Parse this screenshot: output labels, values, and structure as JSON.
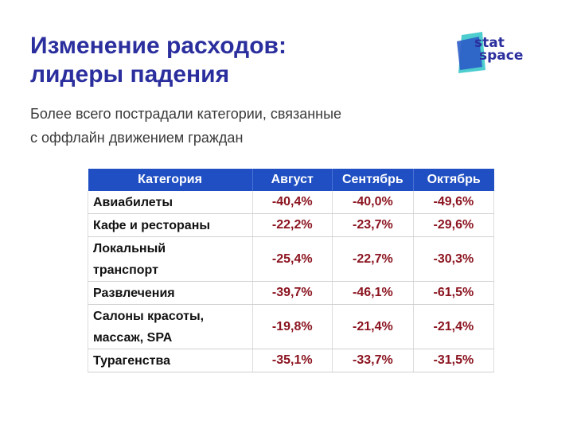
{
  "header": {
    "title_line1": "Изменение расходов:",
    "title_line2": "лидеры падения",
    "subtitle_line1": "Более всего пострадали категории, связанные",
    "subtitle_line2": "с оффлайн движением граждан"
  },
  "logo": {
    "line1": "stat",
    "line2": "space"
  },
  "colors": {
    "title": "#2b2f9e",
    "header_bg": "#1f4fc2",
    "value": "#8b1420",
    "logo_teal": "#2ec4c6",
    "logo_blue": "#2b5cc8"
  },
  "table": {
    "columns": [
      "Категория",
      "Август",
      "Сентябрь",
      "Октябрь"
    ],
    "rows": [
      {
        "category_line1": "Авиабилеты",
        "category_line2": "",
        "values": [
          "-40,4%",
          "-40,0%",
          "-49,6%"
        ]
      },
      {
        "category_line1": "Кафе и рестораны",
        "category_line2": "",
        "values": [
          "-22,2%",
          "-23,7%",
          "-29,6%"
        ]
      },
      {
        "category_line1": "Локальный",
        "category_line2": "транспорт",
        "values": [
          "-25,4%",
          "-22,7%",
          "-30,3%"
        ]
      },
      {
        "category_line1": "Развлечения",
        "category_line2": "",
        "values": [
          "-39,7%",
          "-46,1%",
          "-61,5%"
        ]
      },
      {
        "category_line1": "Салоны красоты,",
        "category_line2": "массаж, SPA",
        "values": [
          "-19,8%",
          "-21,4%",
          "-21,4%"
        ]
      },
      {
        "category_line1": "Турагенства",
        "category_line2": "",
        "values": [
          "-35,1%",
          "-33,7%",
          "-31,5%"
        ]
      }
    ]
  }
}
